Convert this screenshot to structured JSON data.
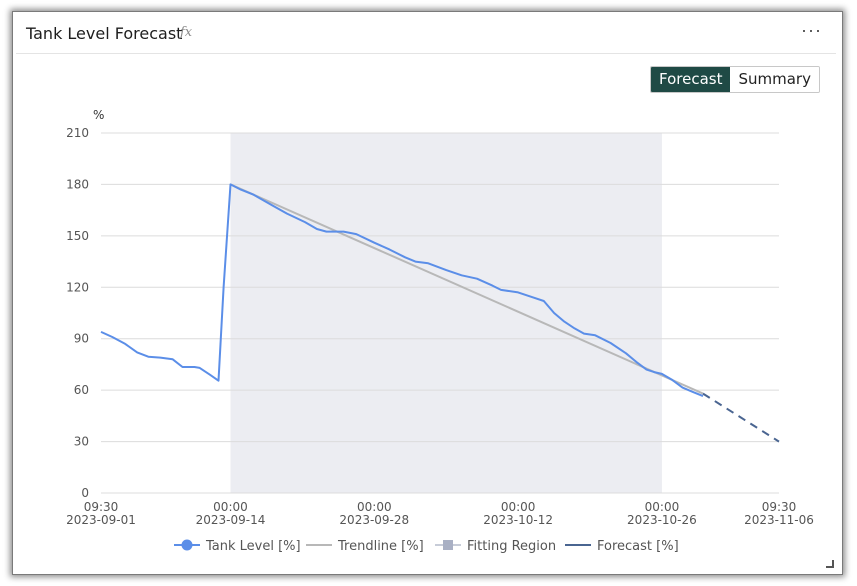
{
  "panel": {
    "title": "Tank Level Forecast",
    "fx_icon": "fx",
    "more_icon": "···"
  },
  "toggle": {
    "forecast_label": "Forecast",
    "summary_label": "Summary",
    "active": "Forecast"
  },
  "colors": {
    "tank_level": "#5b8ee8",
    "trendline": "#b8b8b8",
    "fitting_region": "#ecedf2",
    "forecast": "#4a6591",
    "toggle_active": "#1f4a45"
  },
  "chart_data": {
    "type": "line",
    "title": "",
    "ylabel": "%",
    "ylim": [
      0,
      210
    ],
    "yticks": [
      0,
      30,
      60,
      90,
      120,
      150,
      180,
      210
    ],
    "xlim": [
      "2023-09-01 09:30",
      "2023-11-06 09:30"
    ],
    "xticks": [
      {
        "x": "2023-09-01 09:30",
        "time": "09:30",
        "date": "2023-09-01"
      },
      {
        "x": "2023-09-14 00:00",
        "time": "00:00",
        "date": "2023-09-14"
      },
      {
        "x": "2023-09-28 00:00",
        "time": "00:00",
        "date": "2023-09-28"
      },
      {
        "x": "2023-10-12 00:00",
        "time": "00:00",
        "date": "2023-10-12"
      },
      {
        "x": "2023-10-26 00:00",
        "time": "00:00",
        "date": "2023-10-26"
      },
      {
        "x": "2023-11-06 09:30",
        "time": "09:30",
        "date": "2023-11-06"
      }
    ],
    "grid": true,
    "legend_position": "bottom",
    "fitting_region": {
      "start": "2023-09-14 00:00",
      "end": "2023-10-26 00:00"
    },
    "series": [
      {
        "name": "Tank Level [%]",
        "style": "line-with-marker",
        "points": [
          [
            "2023-09-01 09:30",
            94
          ],
          [
            "2023-09-02 12:00",
            91
          ],
          [
            "2023-09-03 18:00",
            87
          ],
          [
            "2023-09-04 22:00",
            82
          ],
          [
            "2023-09-06 00:00",
            79.5
          ],
          [
            "2023-09-07 04:00",
            79
          ],
          [
            "2023-09-08 09:00",
            78
          ],
          [
            "2023-09-09 08:00",
            73.5
          ],
          [
            "2023-09-10 12:00",
            73.5
          ],
          [
            "2023-09-11 00:00",
            73
          ],
          [
            "2023-09-12 00:00",
            69
          ],
          [
            "2023-09-12 20:00",
            65.5
          ],
          [
            "2023-09-13 08:00",
            120
          ],
          [
            "2023-09-14 00:00",
            180
          ],
          [
            "2023-09-15 00:00",
            177
          ],
          [
            "2023-09-16 06:00",
            174
          ],
          [
            "2023-09-18 00:00",
            168
          ],
          [
            "2023-09-19 12:00",
            163
          ],
          [
            "2023-09-21 06:00",
            158
          ],
          [
            "2023-09-22 10:00",
            154
          ],
          [
            "2023-09-23 08:00",
            152.5
          ],
          [
            "2023-09-25 00:00",
            152.5
          ],
          [
            "2023-09-26 06:00",
            151
          ],
          [
            "2023-09-28 00:00",
            146
          ],
          [
            "2023-09-29 12:00",
            142
          ],
          [
            "2023-10-01 00:00",
            137.5
          ],
          [
            "2023-10-02 00:00",
            135
          ],
          [
            "2023-10-03 06:00",
            134
          ],
          [
            "2023-10-05 00:00",
            130
          ],
          [
            "2023-10-06 12:00",
            127
          ],
          [
            "2023-10-08 00:00",
            125
          ],
          [
            "2023-10-09 12:00",
            121
          ],
          [
            "2023-10-10 08:00",
            118.5
          ],
          [
            "2023-10-12 00:00",
            117
          ],
          [
            "2023-10-13 12:00",
            114
          ],
          [
            "2023-10-14 12:00",
            112
          ],
          [
            "2023-10-15 12:00",
            105
          ],
          [
            "2023-10-16 12:00",
            100
          ],
          [
            "2023-10-17 12:00",
            96
          ],
          [
            "2023-10-18 10:00",
            93
          ],
          [
            "2023-10-19 12:00",
            92
          ],
          [
            "2023-10-21 00:00",
            87.5
          ],
          [
            "2023-10-22 12:00",
            81.5
          ],
          [
            "2023-10-23 12:00",
            76.5
          ],
          [
            "2023-10-24 12:00",
            72
          ],
          [
            "2023-10-25 06:00",
            70.5
          ],
          [
            "2023-10-26 00:00",
            69.5
          ],
          [
            "2023-10-27 00:00",
            66
          ],
          [
            "2023-10-28 00:00",
            61.5
          ],
          [
            "2023-10-29 00:00",
            59
          ],
          [
            "2023-10-30 00:00",
            56.5
          ]
        ]
      },
      {
        "name": "Trendline [%]",
        "style": "line",
        "points": [
          [
            "2023-09-14 00:00",
            180
          ],
          [
            "2023-10-30 00:00",
            58
          ]
        ]
      },
      {
        "name": "Fitting Region",
        "style": "region"
      },
      {
        "name": "Forecast [%]",
        "style": "dashed",
        "points": [
          [
            "2023-10-30 00:00",
            58
          ],
          [
            "2023-11-06 09:30",
            30
          ]
        ]
      }
    ]
  }
}
